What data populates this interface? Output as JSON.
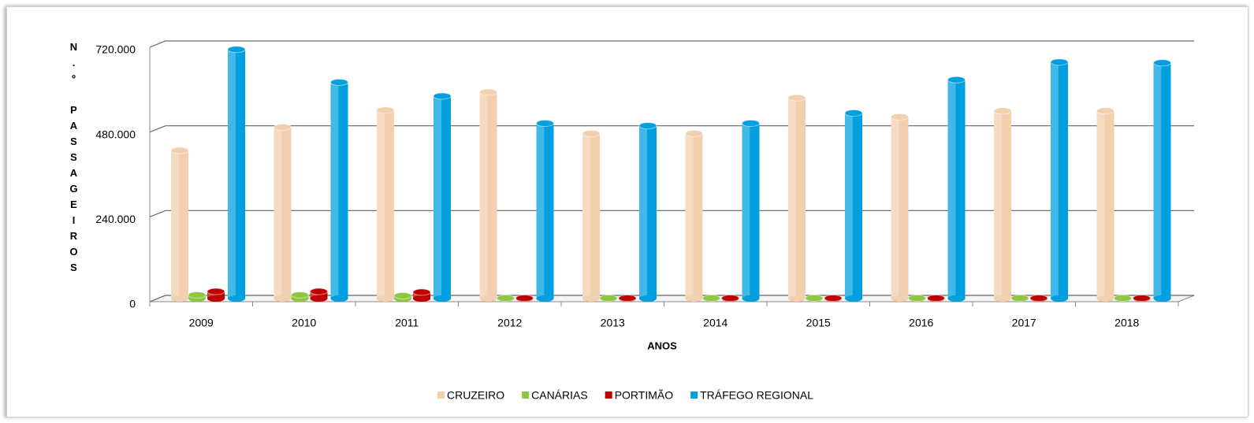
{
  "chart_data": {
    "type": "bar",
    "x_label": "ANOS",
    "y_label": "N.º PASSAGEIROS",
    "categories": [
      "2009",
      "2010",
      "2011",
      "2012",
      "2013",
      "2014",
      "2015",
      "2016",
      "2017",
      "2018"
    ],
    "series": [
      {
        "name": "CRUZEIRO",
        "color": "#f2cfae",
        "values": [
          419000,
          485000,
          533000,
          584000,
          467000,
          467000,
          568000,
          514000,
          531000,
          531000
        ]
      },
      {
        "name": "CANÁRIAS",
        "color": "#8dc63f",
        "values": [
          10000,
          10000,
          8000,
          1000,
          1000,
          1000,
          1000,
          1000,
          1000,
          1000
        ]
      },
      {
        "name": "PORTIMÃO",
        "color": "#c00000",
        "values": [
          20000,
          20000,
          18000,
          1000,
          1000,
          1000,
          1000,
          1000,
          1000,
          1000
        ]
      },
      {
        "name": "TRÁFEGO REGIONAL",
        "color": "#00a0e0",
        "values": [
          705000,
          612000,
          573000,
          496000,
          489000,
          496000,
          525000,
          619000,
          669000,
          667000
        ]
      }
    ],
    "ylim": [
      0,
      720000
    ],
    "yticks": [
      0,
      {
        "value": 240000,
        "label": "240.000"
      },
      {
        "value": 480000,
        "label": "480.000"
      },
      {
        "value": 720000,
        "label": "720.000"
      }
    ],
    "grid": true
  }
}
